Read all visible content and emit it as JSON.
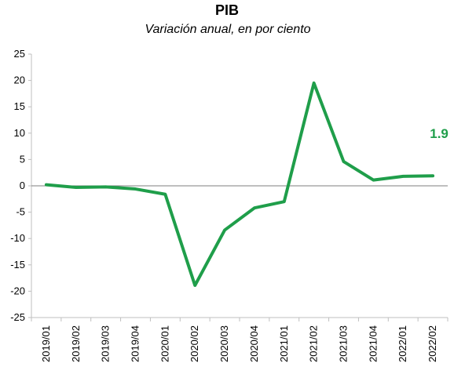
{
  "chart_data": {
    "type": "line",
    "title": "PIB",
    "subtitle": "Variación anual, en por ciento",
    "xlabel": "",
    "ylabel": "",
    "ylim": [
      -25,
      25
    ],
    "yticks": [
      25,
      20,
      15,
      10,
      5,
      0,
      -5,
      -10,
      -15,
      -20,
      -25
    ],
    "ytick_labels": [
      "25",
      "20",
      "15",
      "10",
      "5",
      "0",
      "-5",
      "-10",
      "-15",
      "-20",
      "-25"
    ],
    "grid": false,
    "legend": "none",
    "categories": [
      "2019/01",
      "2019/02",
      "2019/03",
      "2019/04",
      "2020/01",
      "2020/02",
      "2020/03",
      "2020/04",
      "2021/01",
      "2021/02",
      "2021/03",
      "2021/04",
      "2022/01",
      "2022/02"
    ],
    "series": [
      {
        "values": [
          0.2,
          -0.3,
          -0.2,
          -0.6,
          -1.6,
          -18.9,
          -8.4,
          -4.2,
          -3.0,
          19.5,
          4.6,
          1.1,
          1.8,
          1.9
        ],
        "color": "#1f9e4a"
      }
    ],
    "annotation": {
      "text": "1.9",
      "color": "#1f9e4a"
    }
  }
}
